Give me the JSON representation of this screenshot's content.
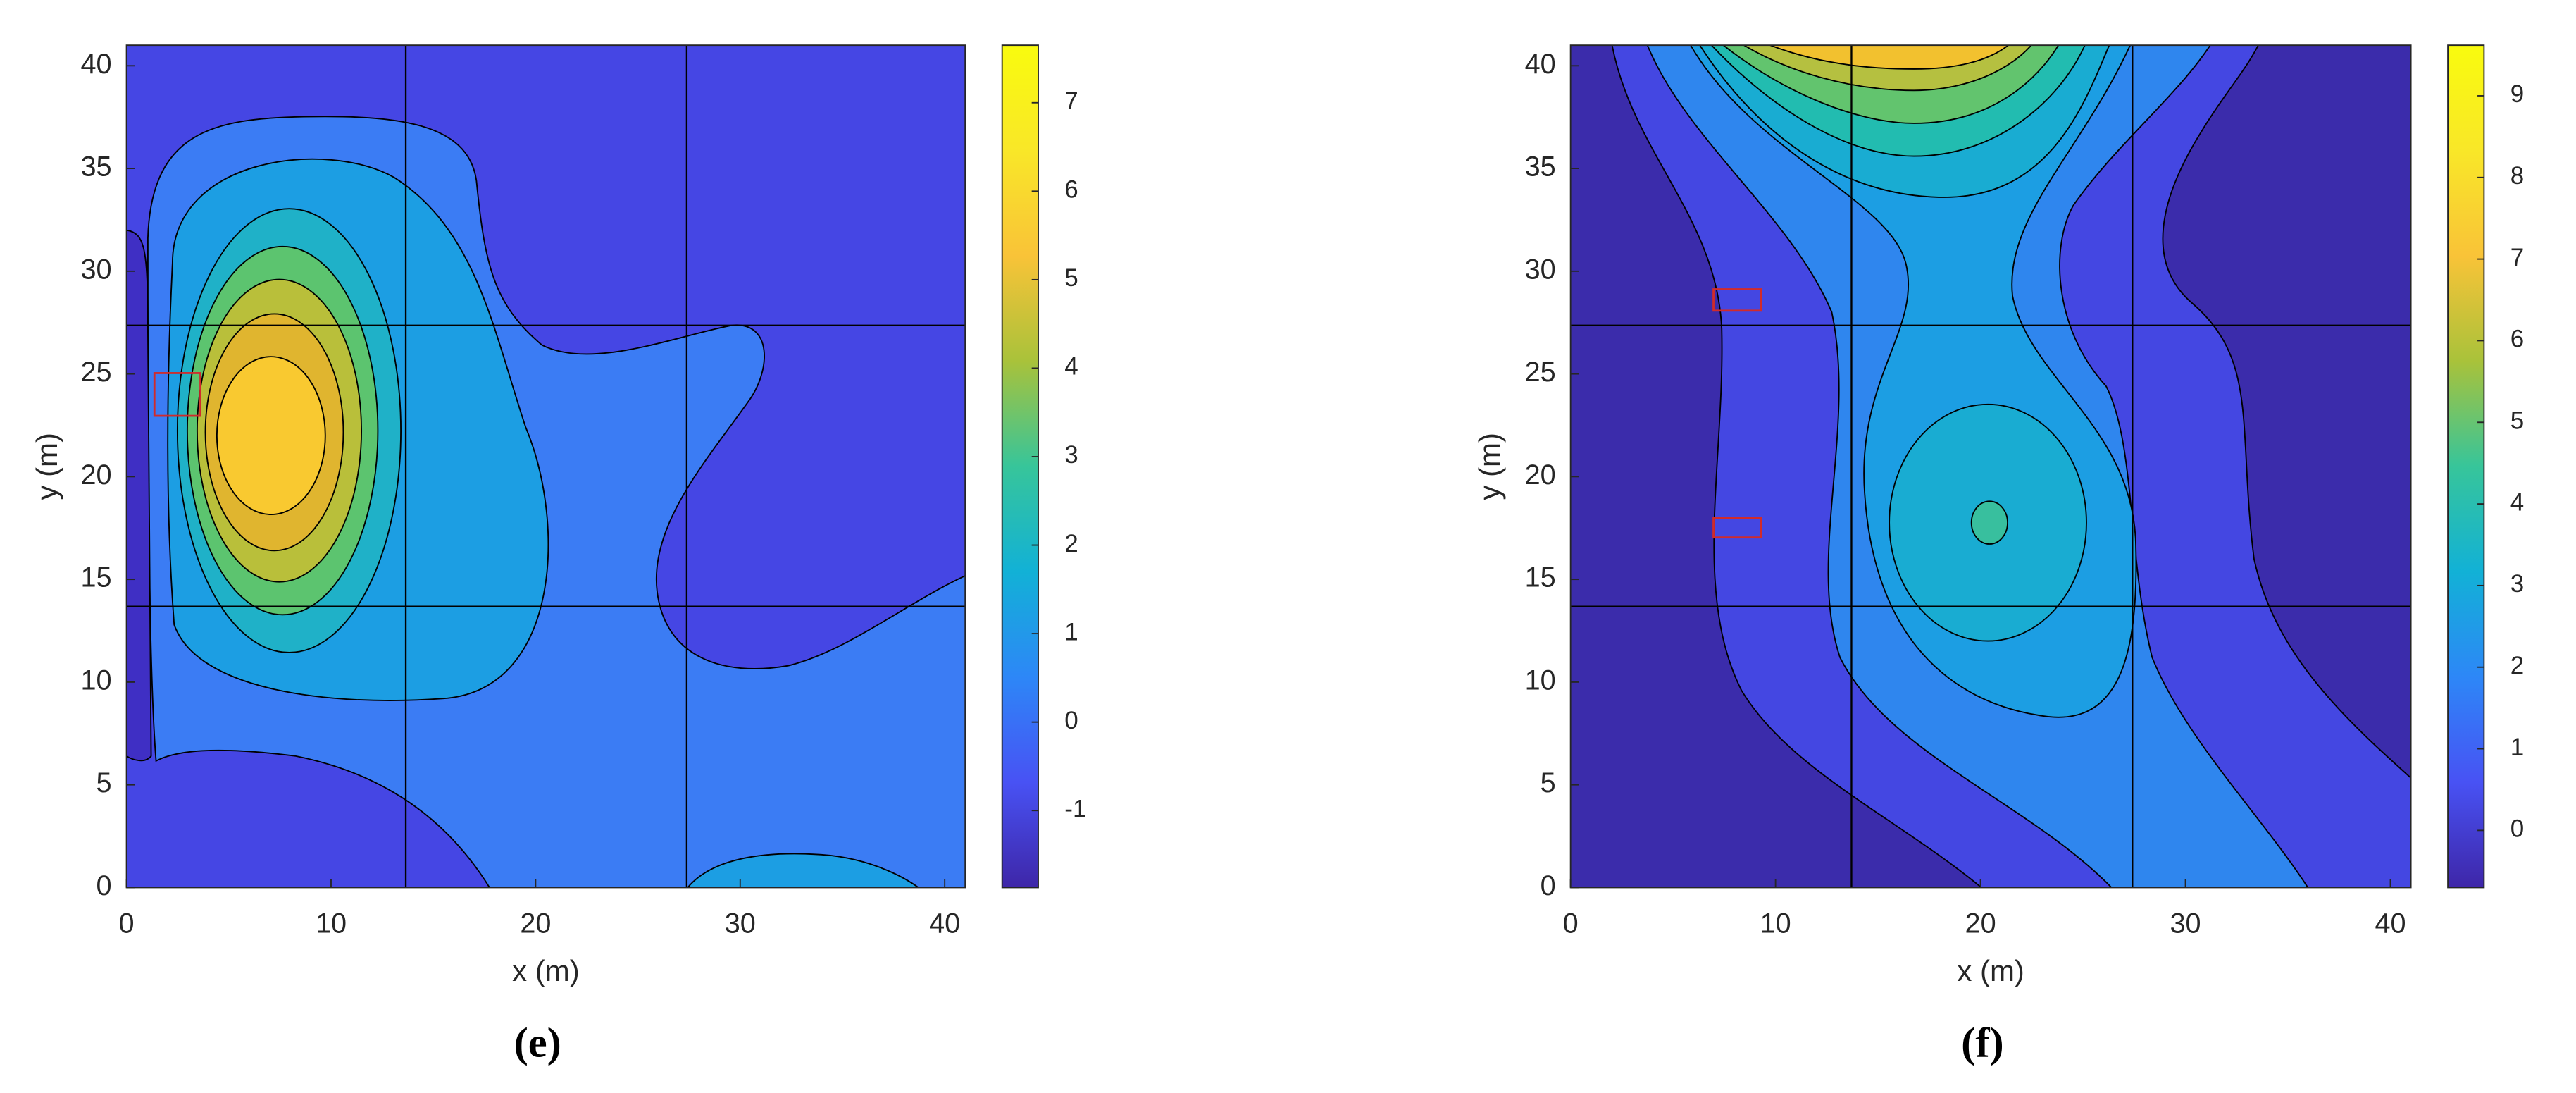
{
  "chart_data": [
    {
      "type": "contour",
      "caption": "(e)",
      "xlabel": "x (m)",
      "ylabel": "y (m)",
      "xlim": [
        0,
        41
      ],
      "ylim": [
        0,
        41
      ],
      "xticks": [
        0,
        10,
        20,
        30,
        40
      ],
      "yticks": [
        0,
        5,
        10,
        15,
        20,
        25,
        30,
        35,
        40
      ],
      "colormap": "parula",
      "clim": [
        -1.87,
        7.65
      ],
      "cticks": [
        -1,
        0,
        1,
        2,
        3,
        4,
        5,
        6,
        7
      ]
    },
    {
      "type": "contour",
      "caption": "(f)",
      "xlabel": "x (m)",
      "ylabel": "y (m)",
      "xlim": [
        0,
        41
      ],
      "ylim": [
        0,
        41
      ],
      "xticks": [
        0,
        10,
        20,
        30,
        40
      ],
      "yticks": [
        0,
        5,
        10,
        15,
        20,
        25,
        30,
        35,
        40
      ],
      "colormap": "parula",
      "clim": [
        -0.7,
        9.62
      ],
      "cticks": [
        0,
        1,
        2,
        3,
        4,
        5,
        6,
        7,
        8,
        9
      ]
    }
  ]
}
